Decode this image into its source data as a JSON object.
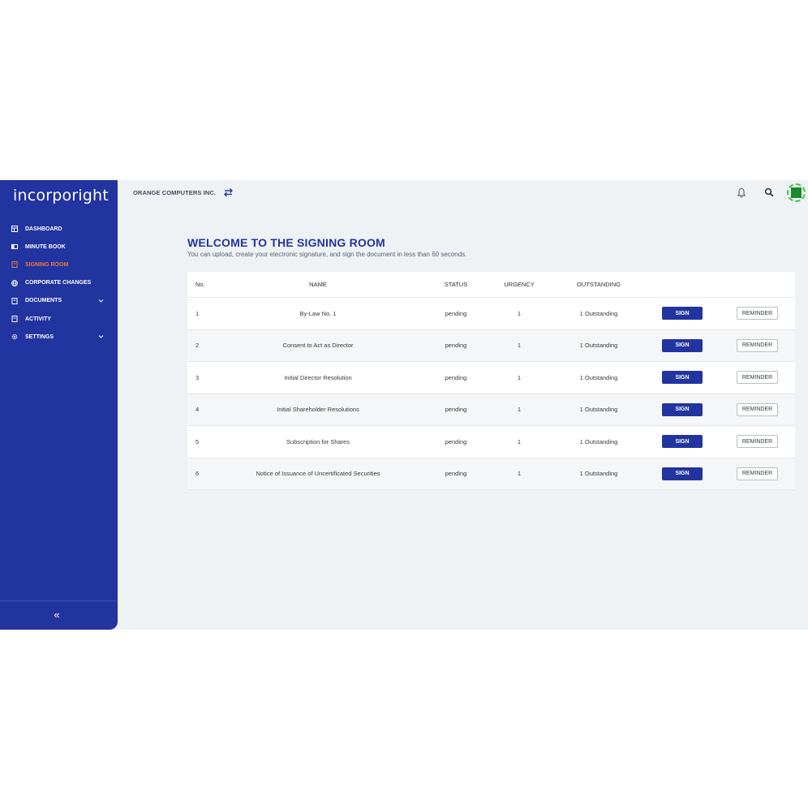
{
  "app": {
    "logo": "incorporight",
    "company": "ORANGE COMPUTERS INC."
  },
  "sidebar": {
    "items": [
      {
        "label": "DASHBOARD",
        "icon": "dashboard-icon"
      },
      {
        "label": "MINUTE BOOK",
        "icon": "book-icon"
      },
      {
        "label": "SIGNING ROOM",
        "icon": "document-icon",
        "active": true
      },
      {
        "label": "CORPORATE CHANGES",
        "icon": "globe-icon"
      },
      {
        "label": "DOCUMENTS",
        "icon": "document-icon",
        "has_submenu": true
      },
      {
        "label": "ACTIVITY",
        "icon": "document-icon"
      },
      {
        "label": "SETTINGS",
        "icon": "gear-icon",
        "has_submenu": true
      }
    ],
    "collapse_label": "«"
  },
  "page": {
    "title": "WELCOME TO THE SIGNING ROOM",
    "subtitle": "You can upload, create your electronic signature, and sign the document in less than 60 seconds."
  },
  "table": {
    "headers": {
      "no": "No.",
      "name": "NAME",
      "status": "STATUS",
      "urgency": "URGENCY",
      "outstanding": "OUTSTANDING"
    },
    "rows": [
      {
        "no": "1",
        "name": "By-Law No. 1",
        "status": "pending",
        "urgency": "1",
        "outstanding": "1 Outstanding",
        "sign": "SIGN",
        "reminder": "REMINDER"
      },
      {
        "no": "2",
        "name": "Consent to Act as Director",
        "status": "pending",
        "urgency": "1",
        "outstanding": "1 Outstanding",
        "sign": "SIGN",
        "reminder": "REMINDER"
      },
      {
        "no": "3",
        "name": "Initial Director Resolution",
        "status": "pending",
        "urgency": "1",
        "outstanding": "1 Outstanding",
        "sign": "SIGN",
        "reminder": "REMINDER"
      },
      {
        "no": "4",
        "name": "Initial Shareholder Resolutions",
        "status": "pending",
        "urgency": "1",
        "outstanding": "1 Outstanding",
        "sign": "SIGN",
        "reminder": "REMINDER"
      },
      {
        "no": "5",
        "name": "Subscription for Shares",
        "status": "pending",
        "urgency": "1",
        "outstanding": "1 Outstanding",
        "sign": "SIGN",
        "reminder": "REMINDER"
      },
      {
        "no": "6",
        "name": "Notice of Issuance of Uncertificated Securities",
        "status": "pending",
        "urgency": "1",
        "outstanding": "1 Outstanding",
        "sign": "SIGN",
        "reminder": "REMINDER"
      }
    ]
  },
  "colors": {
    "brand": "#2234a0",
    "active_nav": "#f07a3c",
    "avatar": "#1b8a2c"
  }
}
